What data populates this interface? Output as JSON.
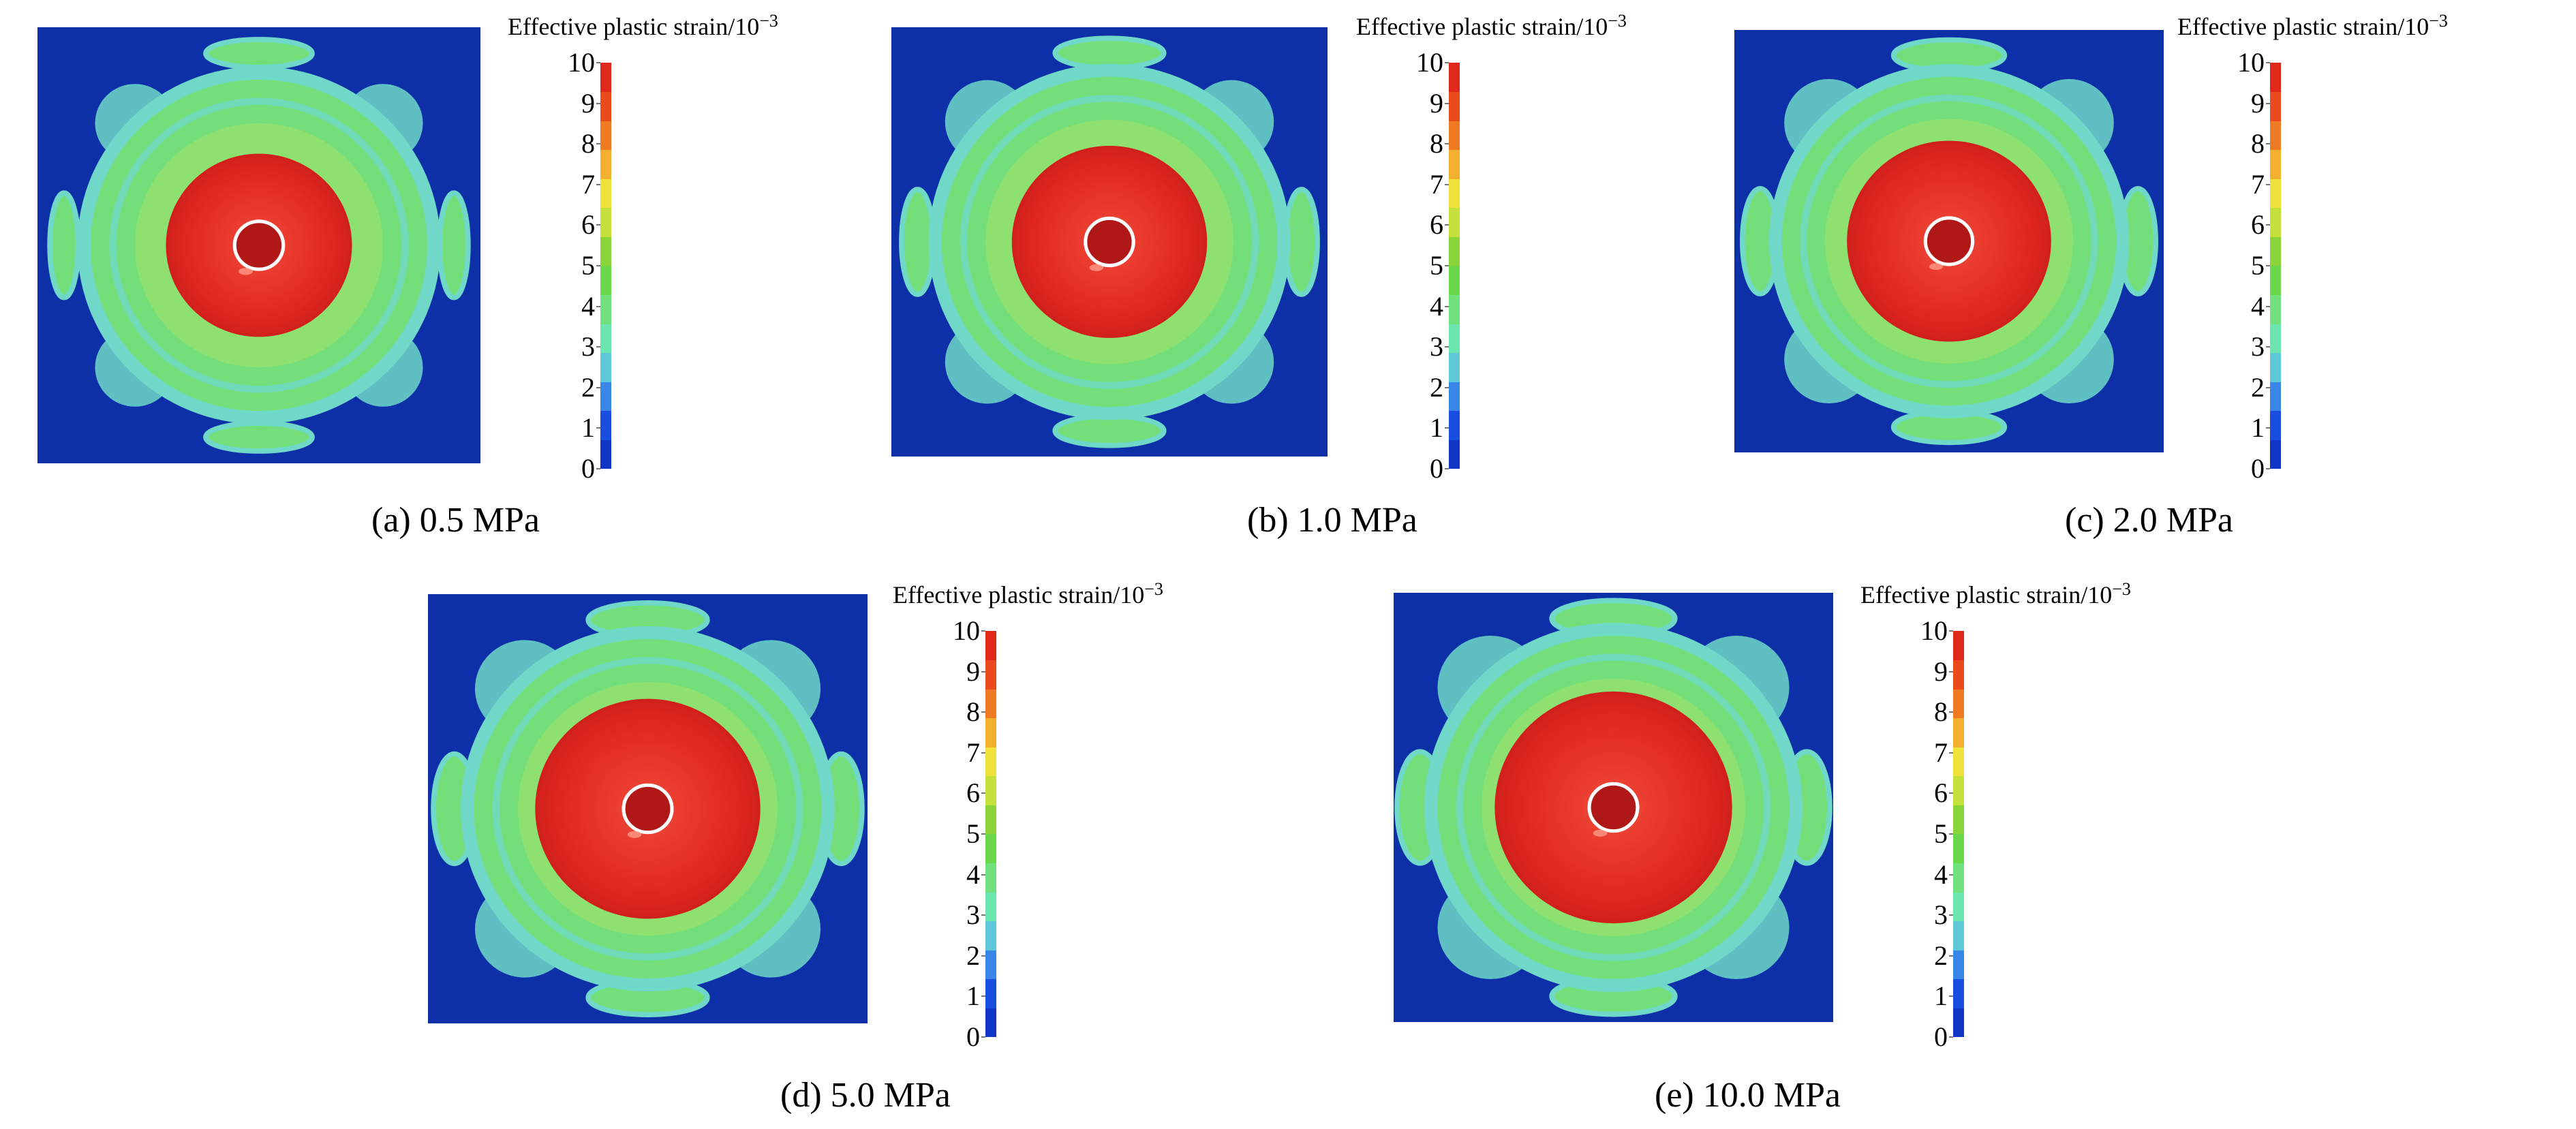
{
  "legend": {
    "title": "Effective plastic strain/10",
    "title_exponent": "−3",
    "ticks": [
      "0",
      "1",
      "2",
      "3",
      "4",
      "5",
      "6",
      "7",
      "8",
      "9",
      "10"
    ],
    "colors": [
      "#1036c8",
      "#1a4ee0",
      "#3a86e8",
      "#5ec8d8",
      "#6ce6b0",
      "#72e07c",
      "#6ad84a",
      "#8ad43a",
      "#c4e03a",
      "#f0e23c",
      "#f2b02e",
      "#ef7a24",
      "#ea4a1e",
      "#e0281a"
    ]
  },
  "panels": [
    {
      "id": "a",
      "caption": "(a) 0.5 MPa",
      "pressure_mpa": 0.5
    },
    {
      "id": "b",
      "caption": "(b) 1.0 MPa",
      "pressure_mpa": 1.0
    },
    {
      "id": "c",
      "caption": "(c) 2.0 MPa",
      "pressure_mpa": 2.0
    },
    {
      "id": "d",
      "caption": "(d) 5.0 MPa",
      "pressure_mpa": 5.0
    },
    {
      "id": "e",
      "caption": "(e) 10.0 MPa",
      "pressure_mpa": 10.0
    }
  ],
  "colors": {
    "background_blue": "#0d2fa8",
    "outer_green": "#74df7a",
    "mid_cyan": "#6fd8c8",
    "core_red": "#e0261e",
    "hole_white": "#ffffff"
  }
}
